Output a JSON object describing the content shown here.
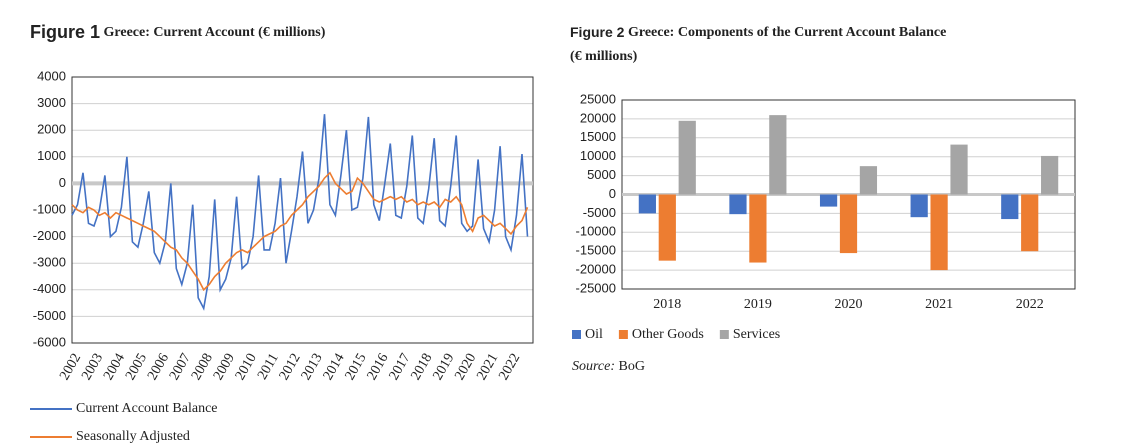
{
  "chart_data": [
    {
      "type": "line",
      "figure_label": "Figure 1",
      "title": "Greece: Current Account (€ millions)",
      "x": [
        2002,
        2002.25,
        2002.5,
        2002.75,
        2003,
        2003.25,
        2003.5,
        2003.75,
        2004,
        2004.25,
        2004.5,
        2004.75,
        2005,
        2005.25,
        2005.5,
        2005.75,
        2006,
        2006.25,
        2006.5,
        2006.75,
        2007,
        2007.25,
        2007.5,
        2007.75,
        2008,
        2008.25,
        2008.5,
        2008.75,
        2009,
        2009.25,
        2009.5,
        2009.75,
        2010,
        2010.25,
        2010.5,
        2010.75,
        2011,
        2011.25,
        2011.5,
        2011.75,
        2012,
        2012.25,
        2012.5,
        2012.75,
        2013,
        2013.25,
        2013.5,
        2013.75,
        2014,
        2014.25,
        2014.5,
        2014.75,
        2015,
        2015.25,
        2015.5,
        2015.75,
        2016,
        2016.25,
        2016.5,
        2016.75,
        2017,
        2017.25,
        2017.5,
        2017.75,
        2018,
        2018.25,
        2018.5,
        2018.75,
        2019,
        2019.25,
        2019.5,
        2019.75,
        2020,
        2020.25,
        2020.5,
        2020.75,
        2021,
        2021.25,
        2021.5,
        2021.75,
        2022,
        2022.25,
        2022.5,
        2022.75
      ],
      "series": [
        {
          "name": "Current Account Balance",
          "color": "#4472c4",
          "values": [
            -1200,
            -800,
            400,
            -1500,
            -1600,
            -1000,
            300,
            -2000,
            -1800,
            -900,
            1000,
            -2200,
            -2400,
            -1500,
            -300,
            -2600,
            -3000,
            -2200,
            0,
            -3200,
            -3800,
            -3000,
            -800,
            -4300,
            -4700,
            -3500,
            -600,
            -4000,
            -3600,
            -2800,
            -500,
            -3200,
            -3000,
            -2000,
            300,
            -2500,
            -2500,
            -1500,
            200,
            -3000,
            -1800,
            -500,
            1200,
            -1500,
            -1000,
            200,
            2600,
            -800,
            -1200,
            300,
            2000,
            -1000,
            -900,
            200,
            2500,
            -800,
            -1400,
            0,
            1500,
            -1200,
            -1300,
            -100,
            1800,
            -1300,
            -1500,
            -200,
            1700,
            -1400,
            -1600,
            -100,
            1800,
            -1500,
            -1800,
            -1600,
            900,
            -1700,
            -2200,
            -1000,
            1400,
            -2000,
            -2500,
            -1200,
            1100,
            -2000
          ]
        },
        {
          "name": "Seasonally Adjusted",
          "color": "#ed7d31",
          "values": [
            -800,
            -1000,
            -1100,
            -900,
            -1000,
            -1200,
            -1100,
            -1300,
            -1100,
            -1200,
            -1300,
            -1400,
            -1500,
            -1600,
            -1700,
            -1800,
            -2000,
            -2200,
            -2400,
            -2500,
            -2800,
            -3000,
            -3300,
            -3600,
            -4000,
            -3800,
            -3500,
            -3300,
            -3000,
            -2800,
            -2600,
            -2500,
            -2600,
            -2400,
            -2200,
            -2000,
            -1900,
            -1800,
            -1600,
            -1500,
            -1200,
            -1000,
            -800,
            -500,
            -300,
            -100,
            200,
            400,
            0,
            -200,
            -400,
            -300,
            200,
            0,
            -300,
            -600,
            -700,
            -600,
            -500,
            -600,
            -500,
            -700,
            -600,
            -800,
            -700,
            -800,
            -700,
            -900,
            -600,
            -700,
            -500,
            -800,
            -1500,
            -1800,
            -1300,
            -1200,
            -1400,
            -1600,
            -1500,
            -1700,
            -1900,
            -1600,
            -1400,
            -900
          ]
        }
      ],
      "xlim": [
        2002,
        2023
      ],
      "xticks": [
        2002,
        2003,
        2004,
        2005,
        2006,
        2007,
        2008,
        2009,
        2010,
        2011,
        2012,
        2013,
        2014,
        2015,
        2016,
        2017,
        2018,
        2019,
        2020,
        2021,
        2022
      ],
      "ylim": [
        -6000,
        4000
      ],
      "yticks": [
        -6000,
        -5000,
        -4000,
        -3000,
        -2000,
        -1000,
        0,
        1000,
        2000,
        3000,
        4000
      ],
      "grid": true,
      "legend": "bottom"
    },
    {
      "type": "bar",
      "figure_label": "Figure 2",
      "title": "Greece: Components of the Current Account Balance (€ millions)",
      "categories": [
        "2018",
        "2019",
        "2020",
        "2021",
        "2022"
      ],
      "series": [
        {
          "name": "Oil",
          "color": "#4472c4",
          "values": [
            -5000,
            -5200,
            -3200,
            -6000,
            -6500
          ]
        },
        {
          "name": "Other Goods",
          "color": "#ed7d31",
          "values": [
            -17500,
            -18000,
            -15500,
            -20000,
            -15000
          ]
        },
        {
          "name": "Services",
          "color": "#a5a5a5",
          "values": [
            19500,
            21000,
            7500,
            13200,
            10200
          ]
        }
      ],
      "ylim": [
        -25000,
        25000
      ],
      "yticks": [
        -25000,
        -20000,
        -15000,
        -10000,
        -5000,
        0,
        5000,
        10000,
        15000,
        20000,
        25000
      ],
      "grid": true,
      "legend": "bottom",
      "source_label": "Source:",
      "source": "BoG"
    }
  ]
}
